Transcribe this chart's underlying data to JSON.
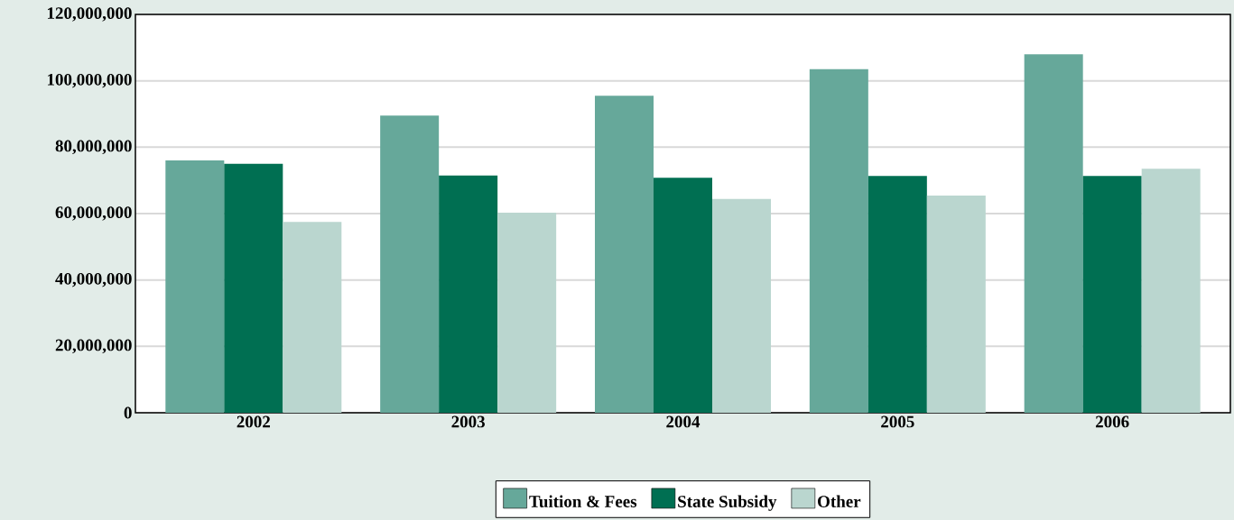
{
  "chart_data": {
    "type": "bar",
    "categories": [
      "2002",
      "2003",
      "2004",
      "2005",
      "2006"
    ],
    "series": [
      {
        "name": "Tuition & Fees",
        "color": "#66a89a",
        "values": [
          76000000,
          89500000,
          95500000,
          103500000,
          108000000
        ]
      },
      {
        "name": "State Subsidy",
        "color": "#006f52",
        "values": [
          75000000,
          71500000,
          70800000,
          71300000,
          71300000
        ]
      },
      {
        "name": "Other",
        "color": "#bad6cf",
        "values": [
          57500000,
          60300000,
          64400000,
          65400000,
          73500000
        ]
      }
    ],
    "ylim": [
      0,
      120000000
    ],
    "yticks": [
      {
        "value": 0,
        "label": "0"
      },
      {
        "value": 20000000,
        "label": "20,000,000"
      },
      {
        "value": 40000000,
        "label": "40,000,000"
      },
      {
        "value": 60000000,
        "label": "60,000,000"
      },
      {
        "value": 80000000,
        "label": "80,000,000"
      },
      {
        "value": 100000000,
        "label": "100,000,000"
      },
      {
        "value": 120000000,
        "label": "120,000,000"
      }
    ],
    "grid": "y",
    "legend": "bottom"
  }
}
